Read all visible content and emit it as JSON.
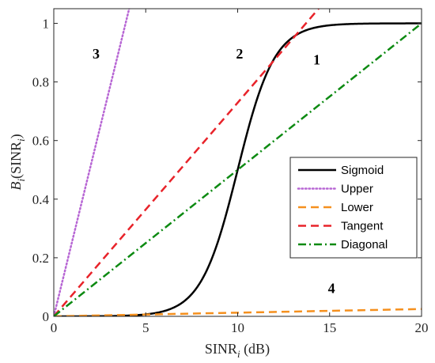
{
  "chart_data": {
    "type": "line",
    "xlabel_main": "SINR",
    "xlabel_sub": "i",
    "xlabel_unit": " (dB)",
    "ylabel_main": "B",
    "ylabel_sub1": "i",
    "ylabel_paren_open": "(SINR",
    "ylabel_sub2": "i",
    "ylabel_paren_close": ")",
    "xlim": [
      0,
      20
    ],
    "ylim": [
      0,
      1.05
    ],
    "x_ticks": [
      0,
      5,
      10,
      15,
      20
    ],
    "x_tick_labels": [
      "0",
      "5",
      "10",
      "15",
      "20"
    ],
    "y_ticks": [
      0,
      0.2,
      0.4,
      0.6,
      0.8,
      1
    ],
    "y_tick_labels": [
      "0",
      "0.2",
      "0.4",
      "0.6",
      "0.8",
      "1"
    ],
    "grid": false,
    "legend_position": "center-right",
    "series": [
      {
        "name": "Sigmoid",
        "color": "#000000",
        "style": "solid",
        "x": [
          0,
          2,
          4,
          5,
          6,
          7,
          7.5,
          8,
          8.5,
          9,
          9.5,
          10,
          10.5,
          11,
          11.5,
          12,
          12.5,
          13,
          14,
          15,
          16,
          18,
          20
        ],
        "y": [
          0.0,
          0.0,
          0.002,
          0.007,
          0.018,
          0.047,
          0.076,
          0.119,
          0.182,
          0.269,
          0.378,
          0.5,
          0.622,
          0.731,
          0.818,
          0.881,
          0.924,
          0.953,
          0.982,
          0.993,
          0.998,
          1.0,
          1.0
        ]
      },
      {
        "name": "Upper",
        "color": "#b766d4",
        "style": "dotted",
        "x": [
          0,
          4.1
        ],
        "y": [
          0,
          1.05
        ]
      },
      {
        "name": "Lower",
        "color": "#f5901e",
        "style": "dashed",
        "x": [
          0,
          20
        ],
        "y": [
          0,
          0.025
        ]
      },
      {
        "name": "Tangent",
        "color": "#e8232a",
        "style": "dashed",
        "x": [
          0,
          14.4
        ],
        "y": [
          0,
          1.05
        ]
      },
      {
        "name": "Diagonal",
        "color": "#0d8a12",
        "style": "dashdot",
        "x": [
          0,
          20
        ],
        "y": [
          0,
          1
        ]
      }
    ],
    "annotations": [
      {
        "text": "1",
        "x": 14.3,
        "y": 0.86
      },
      {
        "text": "2",
        "x": 10.1,
        "y": 0.88
      },
      {
        "text": "3",
        "x": 2.3,
        "y": 0.88
      },
      {
        "text": "4",
        "x": 15.1,
        "y": 0.08
      }
    ]
  }
}
